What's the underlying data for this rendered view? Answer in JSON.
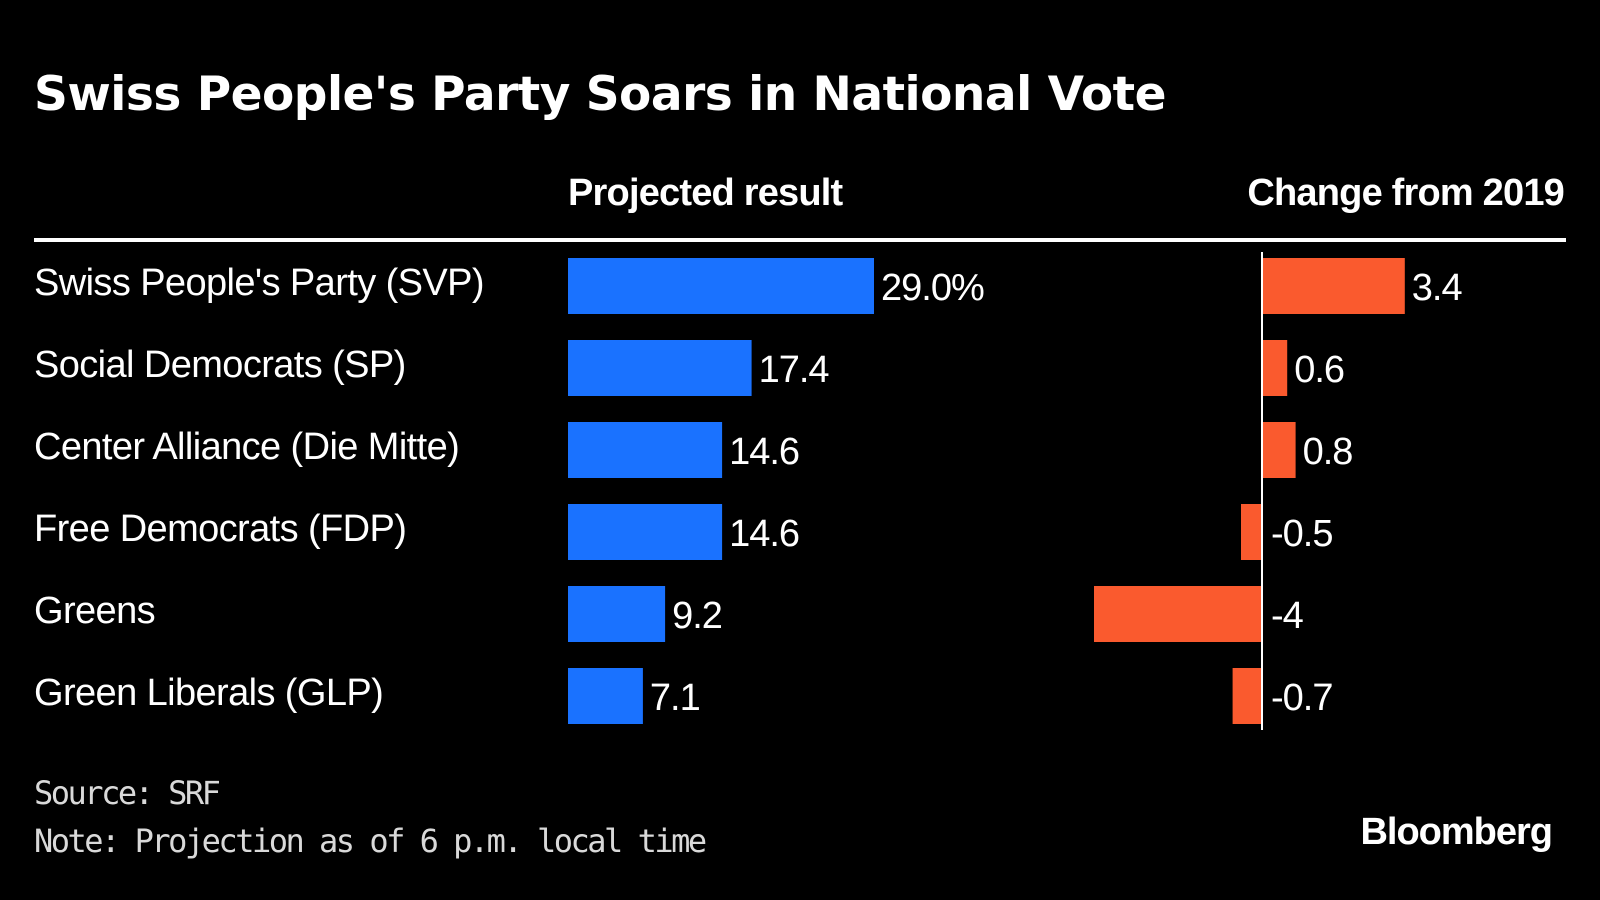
{
  "chart_data": {
    "type": "bar",
    "title": "Swiss People's Party Soars in National Vote",
    "categories": [
      "Swiss People's Party (SVP)",
      "Social Democrats (SP)",
      "Center Alliance (Die Mitte)",
      "Free Democrats (FDP)",
      "Greens",
      "Green Liberals (GLP)"
    ],
    "panels": [
      {
        "header": "Projected result",
        "values": [
          29.0,
          17.4,
          14.6,
          14.6,
          9.2,
          7.1
        ],
        "value_labels": [
          "29.0%",
          "17.4",
          "14.6",
          "14.6",
          "9.2",
          "7.1"
        ],
        "color": "#1a72ff",
        "xlim": [
          0,
          29.0
        ]
      },
      {
        "header": "Change from 2019",
        "values": [
          3.4,
          0.6,
          0.8,
          -0.5,
          -4,
          -0.7
        ],
        "value_labels": [
          "3.4",
          "0.6",
          "0.8",
          "-0.5",
          "-4",
          "-0.7"
        ],
        "color": "#fa5a2e",
        "xlim": [
          -4,
          3.4
        ]
      }
    ],
    "source": "Source: SRF",
    "note": "Note: Projection as of 6 p.m. local time",
    "brand": "Bloomberg",
    "orientation": "horizontal",
    "grid": false,
    "legend": "none"
  }
}
